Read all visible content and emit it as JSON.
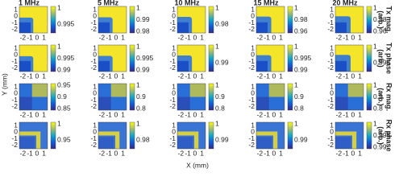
{
  "columns": [
    "1 MHz",
    "5 MHz",
    "10 MHz",
    "15 MHz",
    "20 MHz"
  ],
  "rows": [
    {
      "label": [
        "Tx mag.",
        "(arb.)"
      ],
      "colorbars": [
        [
          "1",
          "0.995"
        ],
        [
          "1",
          "0.99",
          "0.98"
        ],
        [
          "1",
          "0.98"
        ],
        [
          "1",
          "0.98",
          "0.96"
        ],
        [
          "1",
          "0.98",
          "0.96"
        ]
      ]
    },
    {
      "label": [
        "Tx phase",
        "(arb.)"
      ],
      "colorbars": [
        [
          "1",
          "0.995",
          "0.99"
        ],
        [
          "1",
          "0.995",
          "0.99"
        ],
        [
          "1",
          "0.99"
        ],
        [
          "1",
          "0.995",
          "0.99"
        ],
        [
          "1",
          "0.995"
        ]
      ]
    },
    {
      "label": [
        "Rx mag.",
        "(arb.)"
      ],
      "colorbars": [
        [
          "0.95",
          "0.9",
          "0.85"
        ],
        [
          "1",
          "0.9",
          "0.8"
        ],
        [
          "1",
          "0.9",
          "0.8"
        ],
        [
          "1",
          "0.9",
          "0.8"
        ],
        [
          "1",
          "0.9",
          "0.8"
        ]
      ]
    },
    {
      "label": [
        "Rx phase",
        "(arb.)"
      ],
      "colorbars": [
        [
          "1",
          "0.95"
        ],
        [
          "1",
          "0.98"
        ],
        [
          "1",
          "0.99"
        ],
        [
          "1",
          "0.99"
        ],
        [
          "1",
          "0.995",
          "0.99"
        ]
      ]
    }
  ],
  "axis_ticks": {
    "y": [
      "1",
      "0",
      "-1",
      "-2"
    ],
    "x": [
      "-2",
      "-1",
      "0",
      "1"
    ]
  },
  "x_label": "X (mm)",
  "y_label": "Y (mm)"
}
